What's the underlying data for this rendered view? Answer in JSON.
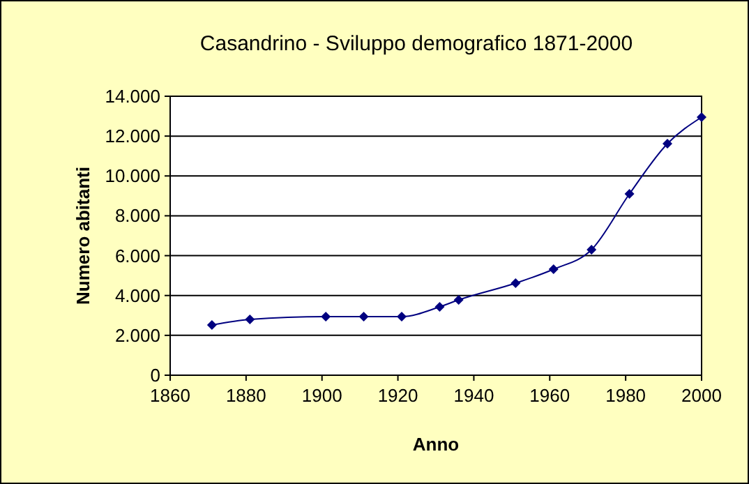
{
  "chart_data": {
    "type": "line",
    "title": "Casandrino - Sviluppo demografico 1871-2000",
    "xlabel": "Anno",
    "ylabel": "Numero abitanti",
    "x": [
      1871,
      1881,
      1901,
      1911,
      1921,
      1931,
      1936,
      1951,
      1961,
      1971,
      1981,
      1991,
      2000
    ],
    "series": [
      {
        "color": "#000080",
        "values": [
          2520,
          2800,
          2940,
          2940,
          2940,
          3430,
          3780,
          4620,
          5320,
          6300,
          9100,
          11620,
          12950
        ]
      }
    ],
    "xlim": [
      1860,
      2000
    ],
    "xticks": [
      1860,
      1880,
      1900,
      1920,
      1940,
      1960,
      1980,
      2000
    ],
    "ylim": [
      0,
      14000
    ],
    "yticks": [
      0,
      {
        "value": 2000,
        "label": "2.000"
      },
      {
        "value": 4000,
        "label": "4.000"
      },
      {
        "value": 6000,
        "label": "6.000"
      },
      {
        "value": 8000,
        "label": "8.000"
      },
      {
        "value": 10000,
        "label": "10.000"
      },
      {
        "value": 12000,
        "label": "12.000"
      },
      {
        "value": 14000,
        "label": "14.000"
      }
    ],
    "grid": "y",
    "marker": "diamond",
    "line_style": "solid"
  }
}
